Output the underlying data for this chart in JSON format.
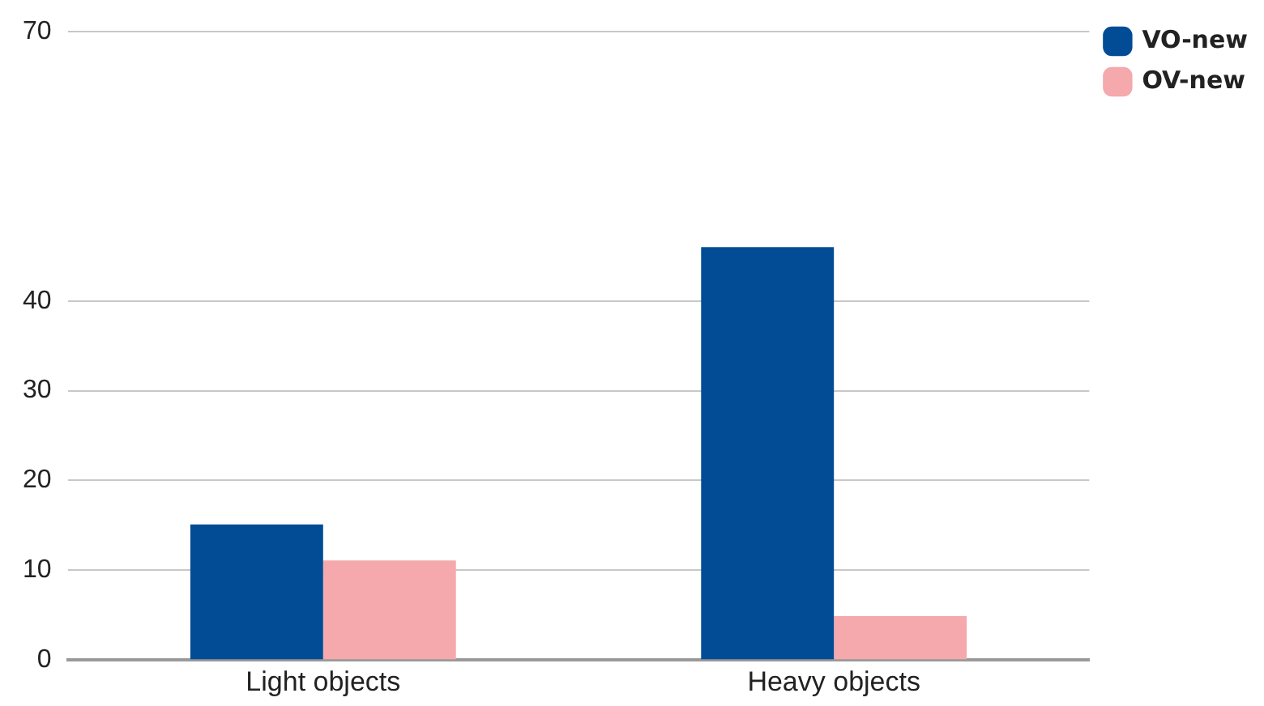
{
  "chart_data": {
    "type": "bar",
    "categories": [
      "Light objects",
      "Heavy objects"
    ],
    "series": [
      {
        "name": "VO-new",
        "color": "#024c96",
        "values": [
          15.1,
          46
        ]
      },
      {
        "name": "OV-new",
        "color": "#f5a9ac",
        "values": [
          11.1,
          4.9
        ]
      }
    ],
    "ylim": [
      0,
      70
    ],
    "yticks": [
      0,
      10,
      20,
      30,
      40,
      70
    ],
    "grid": "y",
    "legend": "top right"
  }
}
